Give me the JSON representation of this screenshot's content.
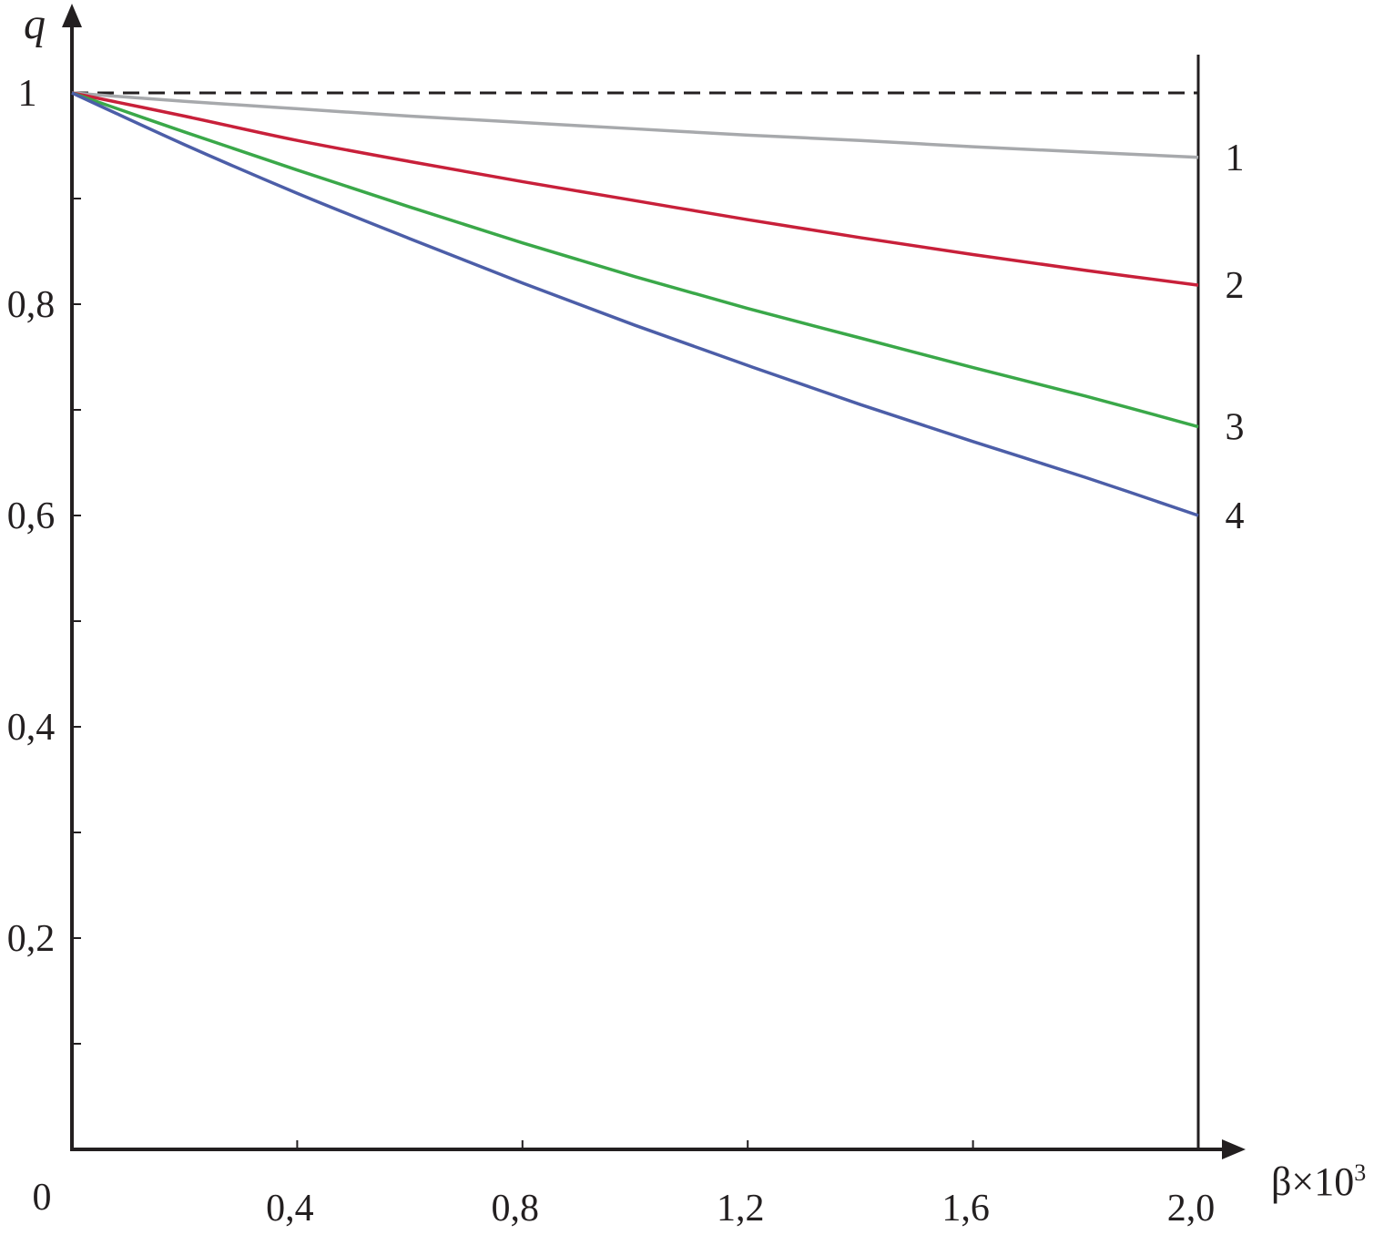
{
  "chart_data": {
    "type": "line",
    "ylabel": "q",
    "xlabel": "β×10",
    "xlabel_superscript": "3",
    "origin_label": "0",
    "xlim": [
      0,
      2.0
    ],
    "ylim": [
      0,
      1.0
    ],
    "x_ticks": [
      {
        "value": 0.4,
        "label": "0,4"
      },
      {
        "value": 0.8,
        "label": "0,8"
      },
      {
        "value": 1.2,
        "label": "1,2"
      },
      {
        "value": 1.6,
        "label": "1,6"
      },
      {
        "value": 2.0,
        "label": "2,0"
      }
    ],
    "y_ticks": [
      {
        "value": 0.2,
        "label": "0,2"
      },
      {
        "value": 0.4,
        "label": "0,4"
      },
      {
        "value": 0.6,
        "label": "0,6"
      },
      {
        "value": 0.8,
        "label": "0,8"
      },
      {
        "value": 1.0,
        "label": "1"
      }
    ],
    "y_minor_ticks": [
      0.1,
      0.3,
      0.5,
      0.7,
      0.9
    ],
    "grid": false,
    "reference_line": {
      "y": 1.0,
      "style": "dashed",
      "color": "#231f20"
    },
    "x": [
      0,
      0.2,
      0.4,
      0.6,
      0.8,
      1.0,
      1.2,
      1.4,
      1.6,
      1.8,
      2.0
    ],
    "series": [
      {
        "name": "1",
        "color": "#a7a9ac",
        "values": [
          1.0,
          0.992,
          0.985,
          0.978,
          0.972,
          0.966,
          0.96,
          0.955,
          0.949,
          0.944,
          0.939
        ]
      },
      {
        "name": "2",
        "color": "#c8203a",
        "values": [
          1.0,
          0.978,
          0.955,
          0.935,
          0.916,
          0.898,
          0.88,
          0.863,
          0.847,
          0.832,
          0.818
        ]
      },
      {
        "name": "3",
        "color": "#3aa849",
        "values": [
          1.0,
          0.963,
          0.927,
          0.892,
          0.858,
          0.826,
          0.796,
          0.768,
          0.74,
          0.713,
          0.684
        ]
      },
      {
        "name": "4",
        "color": "#4c5ea8",
        "values": [
          1.0,
          0.951,
          0.905,
          0.862,
          0.82,
          0.78,
          0.742,
          0.705,
          0.67,
          0.636,
          0.6
        ]
      }
    ]
  }
}
